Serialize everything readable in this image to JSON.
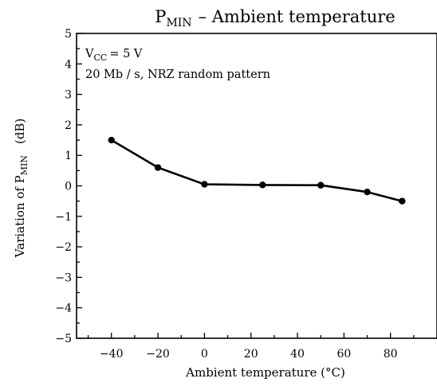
{
  "chart_data": {
    "type": "line",
    "title": {
      "symbol": "P",
      "subscript": "MIN",
      "rest": "– Ambient temperature"
    },
    "xlabel": "Ambient temperature   (°C)",
    "ylabel": {
      "prefix": "Variation of P",
      "subscript": "MIN",
      "unit": "(dB)"
    },
    "annotations": {
      "line1": {
        "prefix": "V",
        "subscript": "CC",
        "rest": "= 5 V"
      },
      "line2": "20 Mb / s,  NRZ  random  pattern"
    },
    "xlim": [
      -55,
      100
    ],
    "ylim": [
      -5,
      5
    ],
    "xticks": [
      -40,
      -20,
      0,
      20,
      40,
      60,
      80
    ],
    "xtick_labels": [
      "−40",
      "−20",
      "0",
      "20",
      "40",
      "60",
      "80"
    ],
    "xminor_step": 10,
    "yticks": [
      -5,
      -4,
      -3,
      -2,
      -1,
      0,
      1,
      2,
      3,
      4,
      5
    ],
    "ytick_labels": [
      "−5",
      "−4",
      "−3",
      "−2",
      "−1",
      "0",
      "1",
      "2",
      "3",
      "4",
      "5"
    ],
    "yminor_step": 0.5,
    "grid": false,
    "series": [
      {
        "x": [
          -40,
          -20,
          0,
          25,
          50,
          70,
          85
        ],
        "y": [
          1.5,
          0.6,
          0.05,
          0.03,
          0.02,
          -0.2,
          -0.5
        ]
      }
    ]
  }
}
